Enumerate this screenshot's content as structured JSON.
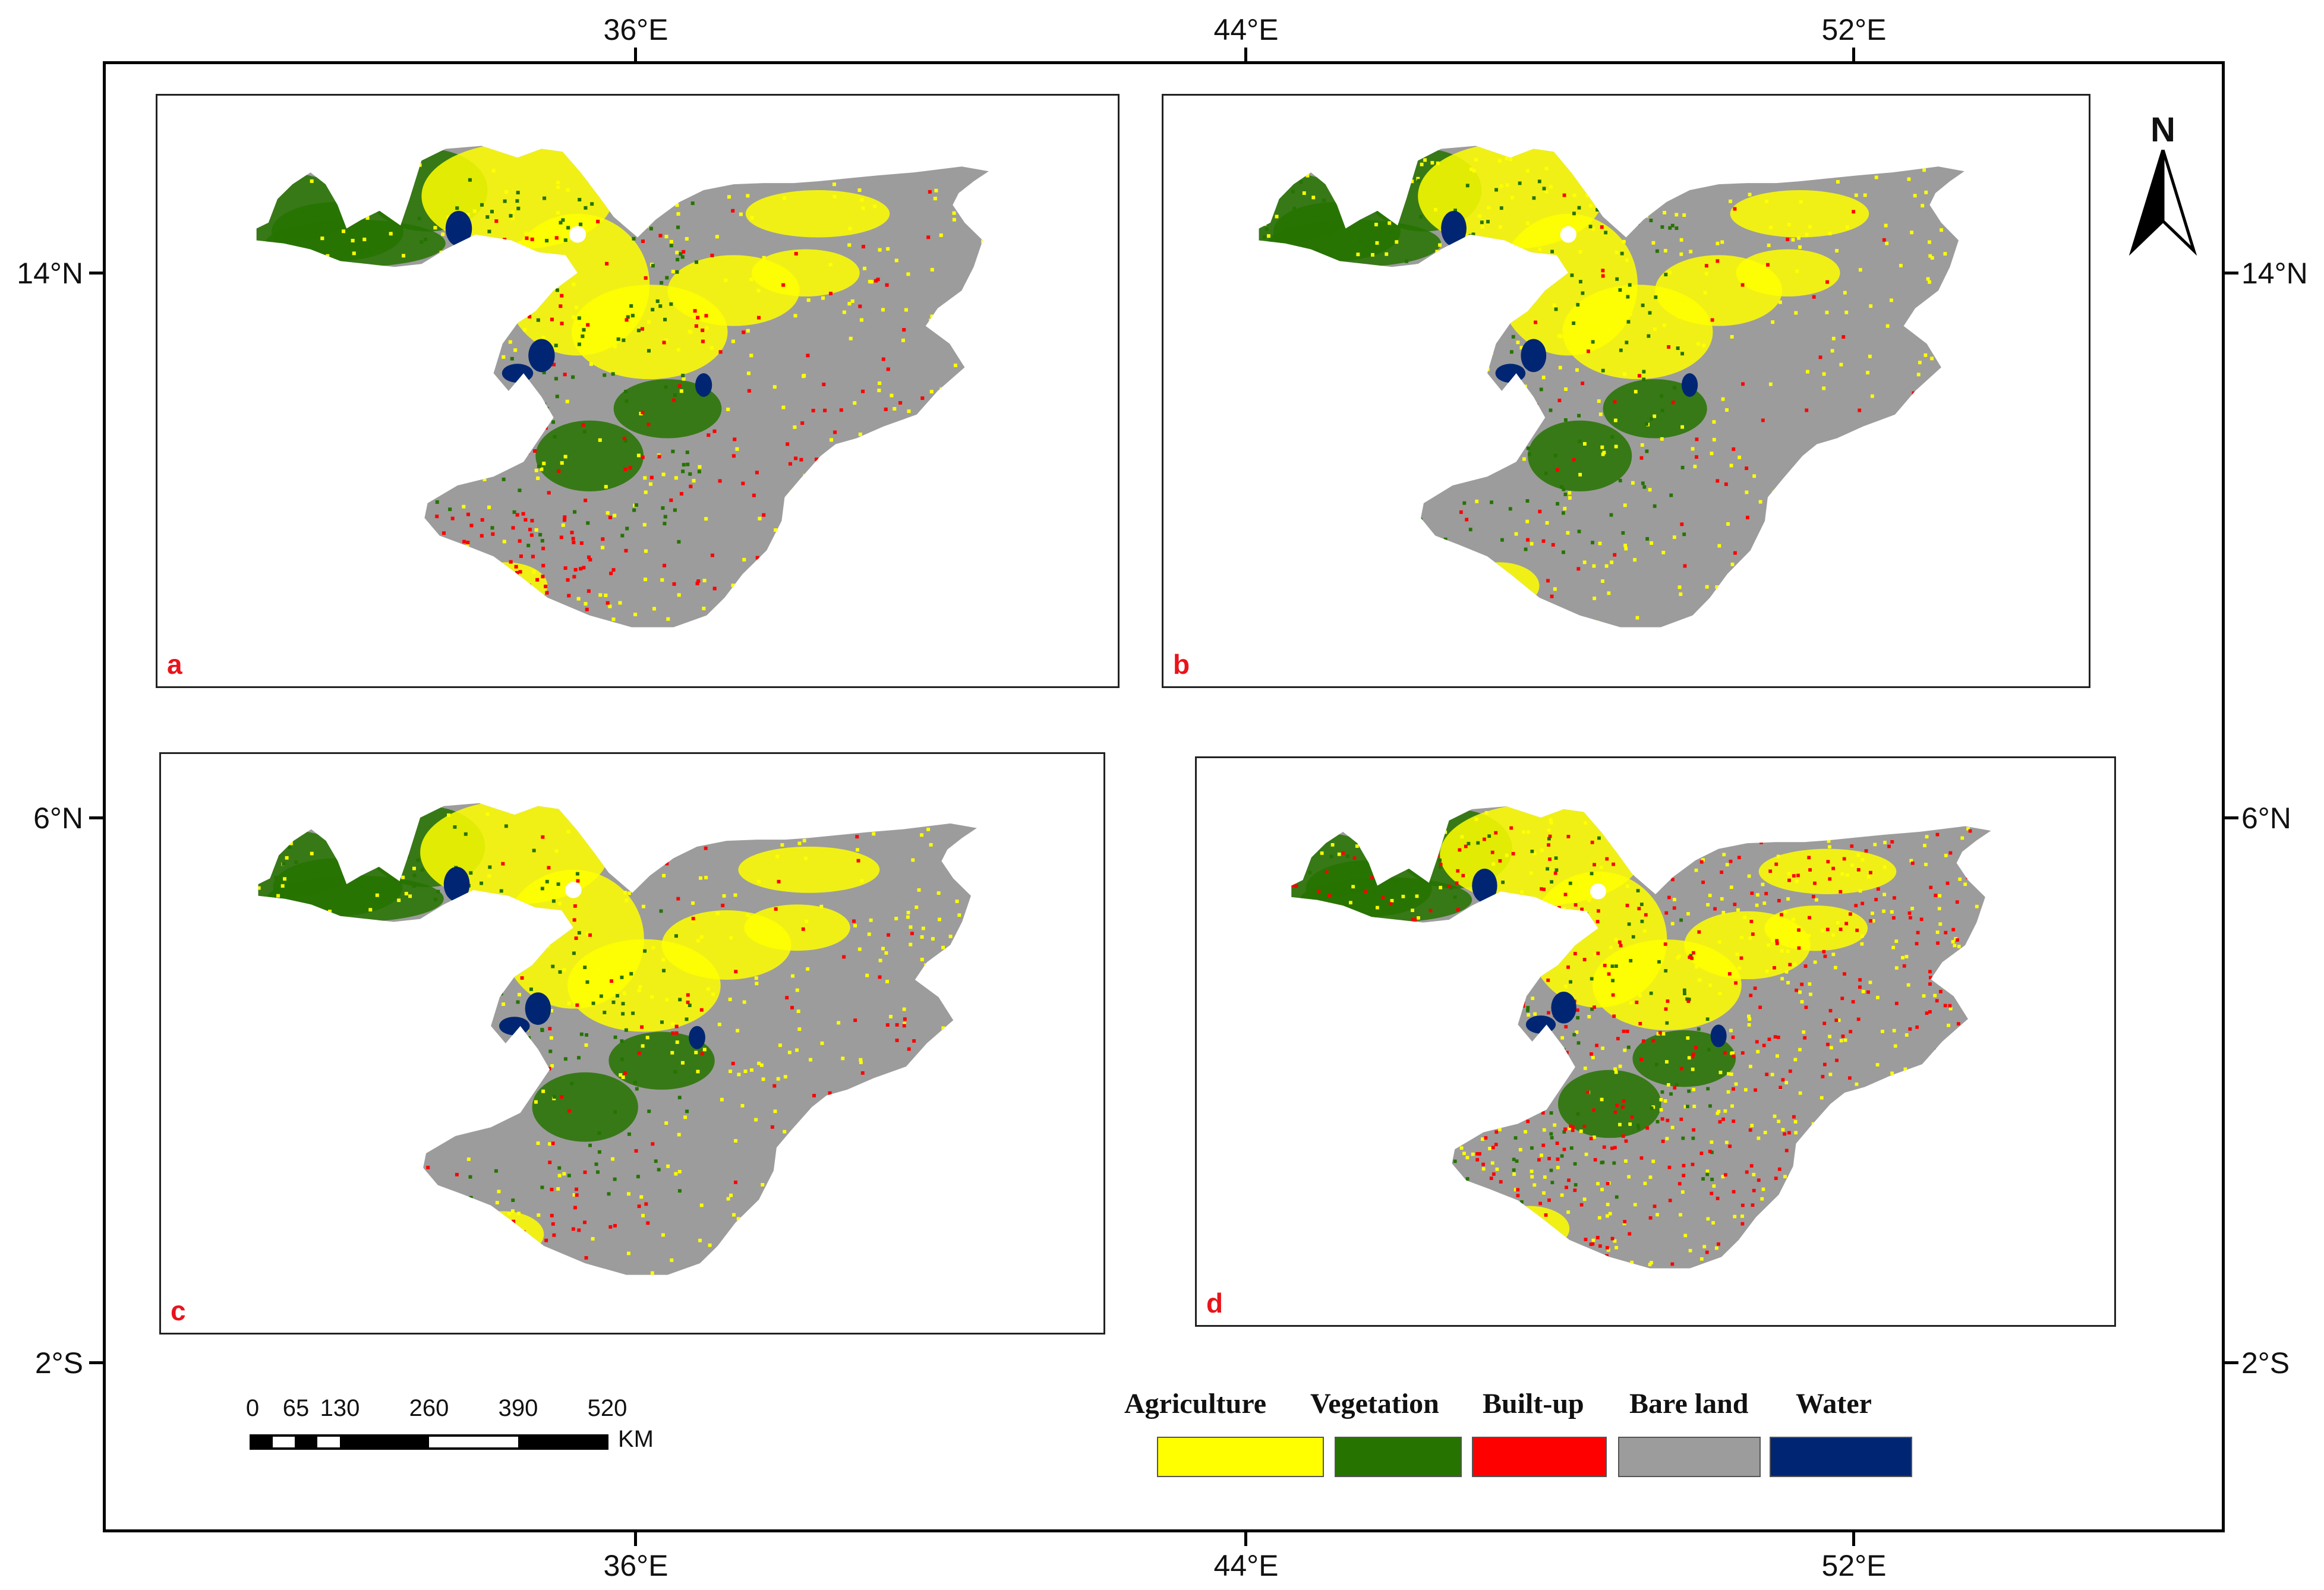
{
  "longitude_labels": [
    "36°E",
    "44°E",
    "52°E"
  ],
  "latitude_labels": [
    "14°N",
    "6°N",
    "2°S"
  ],
  "panels": [
    {
      "letter": "a",
      "variant": "a"
    },
    {
      "letter": "b",
      "variant": "b"
    },
    {
      "letter": "c",
      "variant": "c"
    },
    {
      "letter": "d",
      "variant": "d"
    }
  ],
  "north_arrow": {
    "letter": "N"
  },
  "scale_bar": {
    "ticks": [
      "0",
      "65",
      "130",
      "260",
      "390",
      "520"
    ],
    "unit": "KM"
  },
  "legend": [
    {
      "label": "Agriculture",
      "color": "#ffff00"
    },
    {
      "label": "Vegetation",
      "color": "#267300"
    },
    {
      "label": "Built-up",
      "color": "#ff0000"
    },
    {
      "label": "Bare land",
      "color": "#9c9c9c"
    },
    {
      "label": "Water",
      "color": "#002673"
    }
  ],
  "colors": {
    "frame": "#000000",
    "panel_letter": "#e8141a"
  }
}
